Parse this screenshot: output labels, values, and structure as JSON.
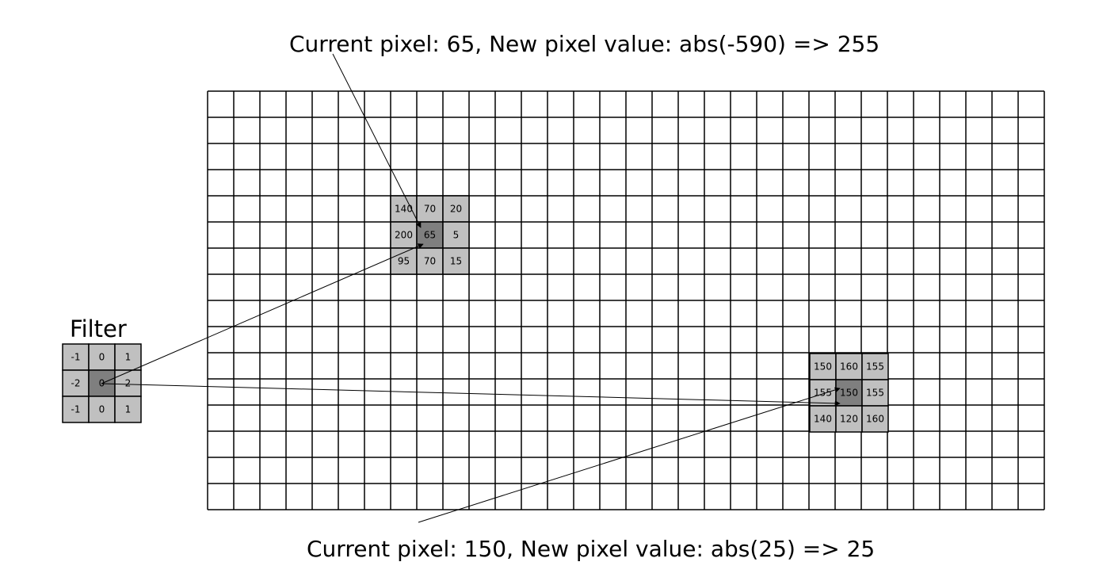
{
  "captions": {
    "top": "Current pixel: 65, New pixel value: abs(-590) => 255",
    "bottom": "Current pixel: 150, New pixel value: abs(25) => 25"
  },
  "filter": {
    "label": "Filter",
    "values": [
      [
        "-1",
        "0",
        "1"
      ],
      [
        "-2",
        "0",
        "2"
      ],
      [
        "-1",
        "0",
        "1"
      ]
    ]
  },
  "patch_top": {
    "values": [
      [
        "140",
        "70",
        "20"
      ],
      [
        "200",
        "65",
        "5"
      ],
      [
        "95",
        "70",
        "15"
      ]
    ]
  },
  "patch_bottom": {
    "values": [
      [
        "150",
        "160",
        "155"
      ],
      [
        "155",
        "150",
        "155"
      ],
      [
        "140",
        "120",
        "160"
      ]
    ]
  },
  "colors": {
    "grid_line": "#000000",
    "cell_light": "#c0c0c0",
    "cell_center": "#7f7f7f"
  }
}
